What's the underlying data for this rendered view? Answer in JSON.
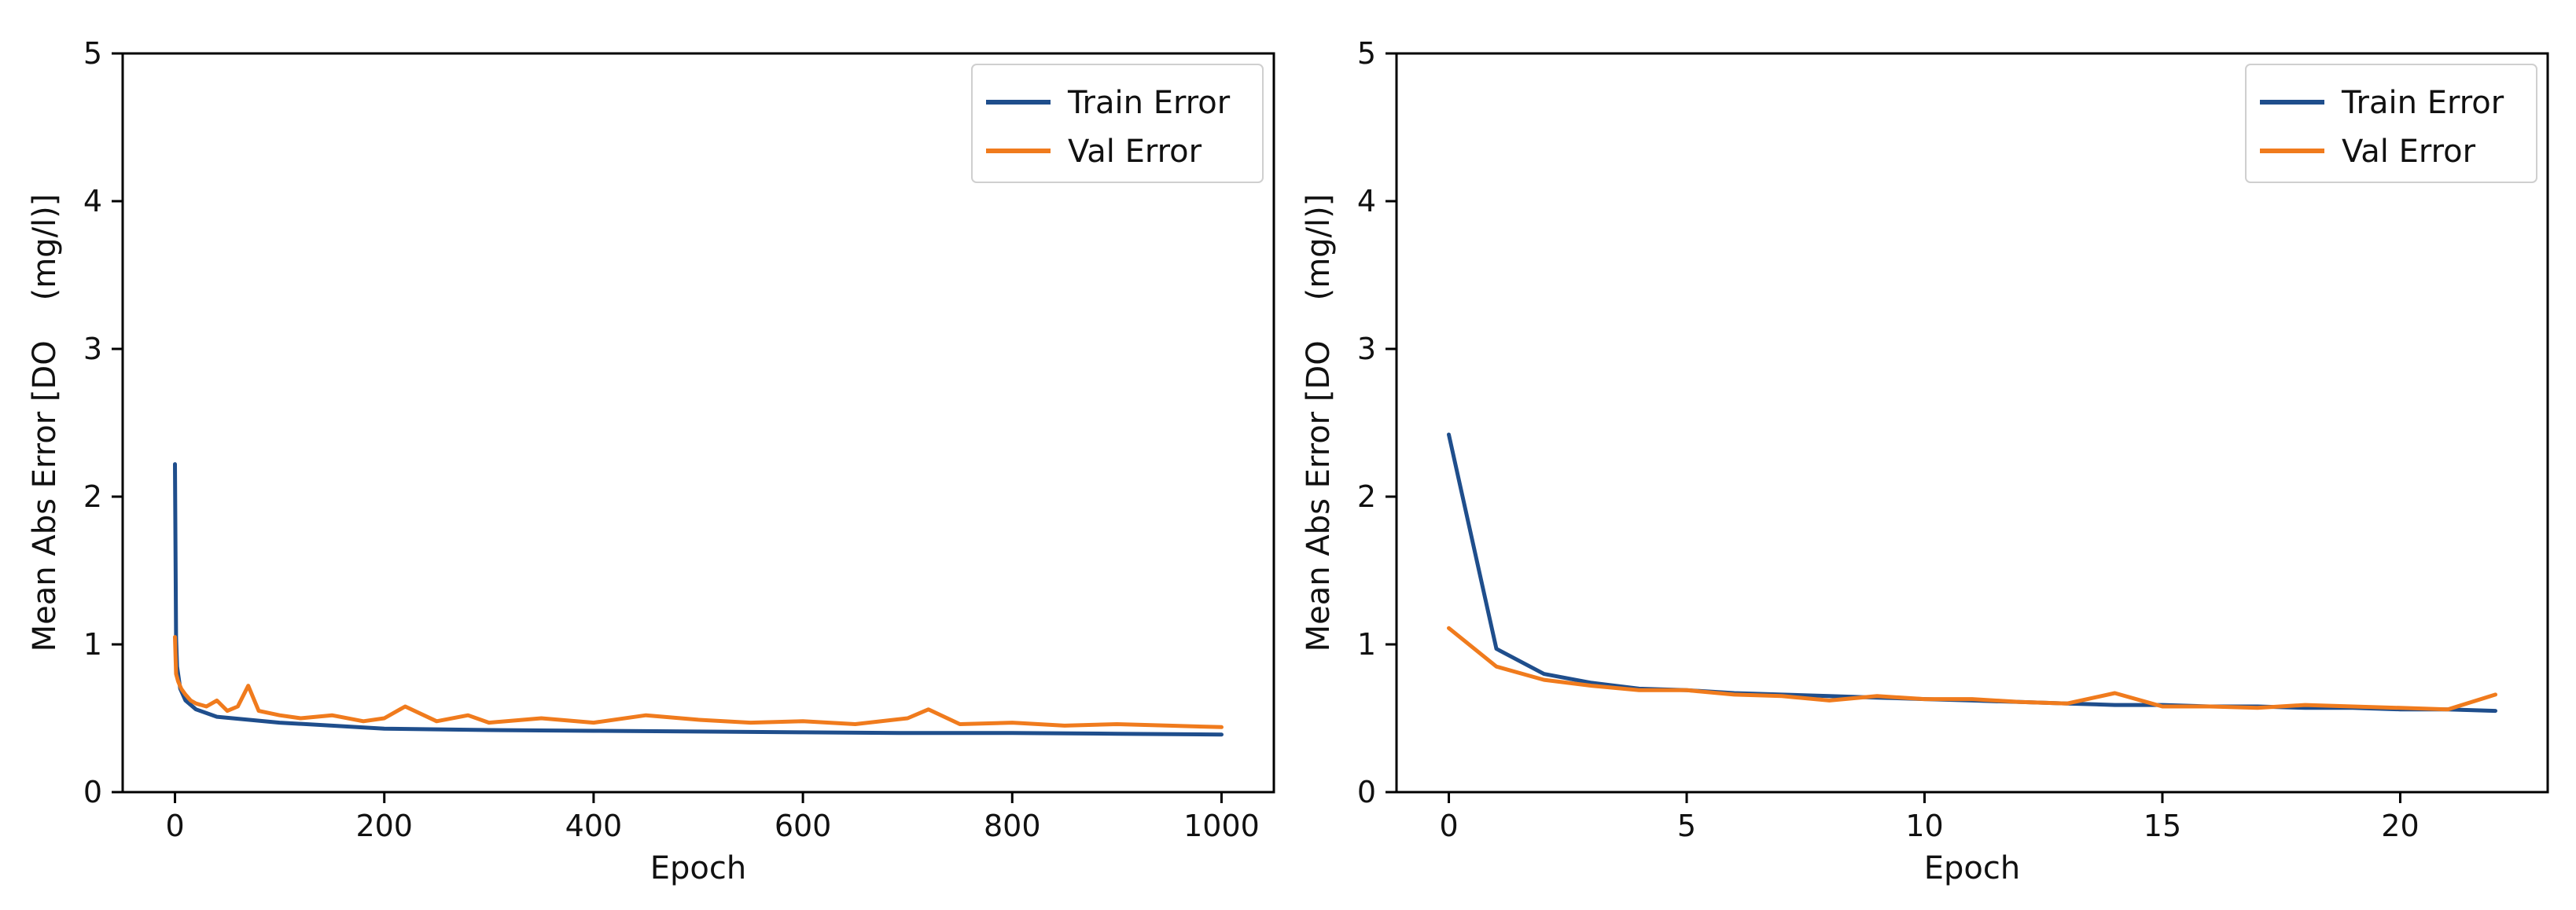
{
  "chart_data": [
    {
      "type": "line",
      "xlabel": "Epoch",
      "ylabel": "Mean Abs Error [DO    (mg/l)]",
      "xlim": [
        -50,
        1050
      ],
      "ylim": [
        0,
        5
      ],
      "xticks": [
        "0",
        "200",
        "400",
        "600",
        "800",
        "1000"
      ],
      "yticks": [
        "0",
        "1",
        "2",
        "3",
        "4",
        "5"
      ],
      "grid": false,
      "legend_position": "top-right",
      "series": [
        {
          "name": "Train Error",
          "color": "#1f4e8c",
          "x": [
            0,
            1,
            2,
            5,
            10,
            20,
            40,
            70,
            100,
            150,
            200,
            300,
            400,
            500,
            600,
            700,
            800,
            900,
            1000
          ],
          "y": [
            2.22,
            1.05,
            0.85,
            0.7,
            0.62,
            0.56,
            0.51,
            0.49,
            0.47,
            0.45,
            0.43,
            0.42,
            0.415,
            0.41,
            0.405,
            0.4,
            0.4,
            0.395,
            0.39
          ]
        },
        {
          "name": "Val Error",
          "color": "#f07b1d",
          "x": [
            0,
            1,
            3,
            6,
            10,
            15,
            20,
            30,
            40,
            50,
            60,
            70,
            80,
            100,
            120,
            150,
            180,
            200,
            220,
            250,
            280,
            300,
            350,
            400,
            450,
            500,
            550,
            600,
            650,
            700,
            720,
            750,
            800,
            850,
            900,
            950,
            1000
          ],
          "y": [
            1.05,
            0.8,
            0.75,
            0.7,
            0.66,
            0.62,
            0.6,
            0.58,
            0.62,
            0.55,
            0.58,
            0.72,
            0.55,
            0.52,
            0.5,
            0.52,
            0.48,
            0.5,
            0.58,
            0.48,
            0.52,
            0.47,
            0.5,
            0.47,
            0.52,
            0.49,
            0.47,
            0.48,
            0.46,
            0.5,
            0.56,
            0.46,
            0.47,
            0.45,
            0.46,
            0.45,
            0.44
          ]
        }
      ]
    },
    {
      "type": "line",
      "xlabel": "Epoch",
      "ylabel": "Mean Abs Error [DO    (mg/l)]",
      "xlim": [
        -1.1,
        23.1
      ],
      "ylim": [
        0,
        5
      ],
      "xticks": [
        "0",
        "5",
        "10",
        "15",
        "20"
      ],
      "yticks": [
        "0",
        "1",
        "2",
        "3",
        "4",
        "5"
      ],
      "grid": false,
      "legend_position": "top-right",
      "series": [
        {
          "name": "Train Error",
          "color": "#1f4e8c",
          "x": [
            0,
            1,
            2,
            3,
            4,
            5,
            6,
            7,
            8,
            9,
            10,
            11,
            12,
            13,
            14,
            15,
            16,
            17,
            18,
            19,
            20,
            21,
            22
          ],
          "y": [
            2.42,
            0.97,
            0.8,
            0.74,
            0.7,
            0.69,
            0.67,
            0.66,
            0.65,
            0.64,
            0.63,
            0.62,
            0.61,
            0.6,
            0.59,
            0.59,
            0.58,
            0.58,
            0.57,
            0.57,
            0.56,
            0.56,
            0.55
          ]
        },
        {
          "name": "Val Error",
          "color": "#f07b1d",
          "x": [
            0,
            1,
            2,
            3,
            4,
            5,
            6,
            7,
            8,
            9,
            10,
            11,
            12,
            13,
            14,
            15,
            16,
            17,
            18,
            19,
            20,
            21,
            22
          ],
          "y": [
            1.11,
            0.85,
            0.76,
            0.72,
            0.69,
            0.69,
            0.66,
            0.65,
            0.62,
            0.65,
            0.63,
            0.63,
            0.61,
            0.6,
            0.67,
            0.58,
            0.58,
            0.57,
            0.59,
            0.58,
            0.57,
            0.56,
            0.66
          ]
        }
      ]
    }
  ]
}
